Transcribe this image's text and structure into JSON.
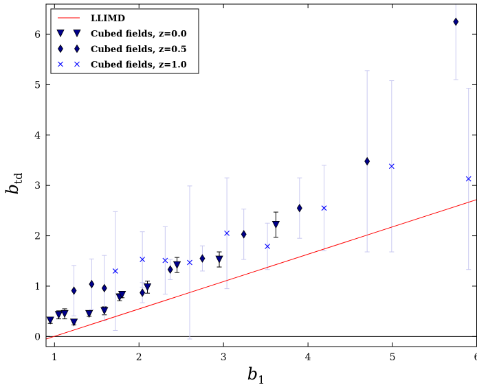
{
  "chart_data": {
    "type": "scatter",
    "xlabel": "b",
    "xlabel_sub": "1",
    "ylabel": "b",
    "ylabel_sub": "td",
    "xlim": [
      0.9,
      6.0
    ],
    "ylim": [
      -0.2,
      6.6
    ],
    "xticks": [
      1,
      2,
      3,
      4,
      5,
      6
    ],
    "yticks": [
      0,
      1,
      2,
      3,
      4,
      5,
      6
    ],
    "grid": false,
    "legend_position": "top-left",
    "zero_line": true,
    "line": {
      "name": "LLIMD",
      "color": "#ff0000",
      "x": [
        0.9,
        6.0
      ],
      "y": [
        -0.05,
        2.72
      ]
    },
    "series": [
      {
        "name": "Cubed fields, z=0.0",
        "marker": "triangle-down",
        "color": "#00008b",
        "points": [
          {
            "x": 0.95,
            "y": 0.32,
            "err": 0.06
          },
          {
            "x": 1.05,
            "y": 0.43,
            "err": 0.08
          },
          {
            "x": 1.12,
            "y": 0.45,
            "err": 0.1
          },
          {
            "x": 1.23,
            "y": 0.28,
            "err": 0.05
          },
          {
            "x": 1.41,
            "y": 0.45,
            "err": 0.05
          },
          {
            "x": 1.59,
            "y": 0.51,
            "err": 0.08
          },
          {
            "x": 1.77,
            "y": 0.78,
            "err": 0.07
          },
          {
            "x": 1.8,
            "y": 0.83,
            "err": 0.06
          },
          {
            "x": 2.1,
            "y": 0.98,
            "err": 0.12
          },
          {
            "x": 2.45,
            "y": 1.42,
            "err": 0.15
          },
          {
            "x": 2.95,
            "y": 1.53,
            "err": 0.15
          },
          {
            "x": 3.62,
            "y": 2.22,
            "err": 0.25
          }
        ]
      },
      {
        "name": "Cubed fields, z=0.5",
        "marker": "diamond",
        "color": "#00008b",
        "points": [
          {
            "x": 1.23,
            "y": 0.91,
            "err": 0.5
          },
          {
            "x": 1.44,
            "y": 1.04,
            "err": 0.5
          },
          {
            "x": 1.59,
            "y": 0.96,
            "err": 0.65
          },
          {
            "x": 2.04,
            "y": 0.87,
            "err": 0.2
          },
          {
            "x": 2.37,
            "y": 1.33,
            "err": 0.2
          },
          {
            "x": 2.75,
            "y": 1.55,
            "err": 0.25
          },
          {
            "x": 3.24,
            "y": 2.03,
            "err": 0.5
          },
          {
            "x": 3.9,
            "y": 2.55,
            "err": 0.6
          },
          {
            "x": 4.7,
            "y": 3.48,
            "err": 1.8
          },
          {
            "x": 5.75,
            "y": 6.25,
            "err": 1.15
          }
        ]
      },
      {
        "name": "Cubed fields, z=1.0",
        "marker": "x",
        "color": "#0000ff",
        "points": [
          {
            "x": 1.72,
            "y": 1.3,
            "err": 1.18
          },
          {
            "x": 2.04,
            "y": 1.53,
            "err": 0.55
          },
          {
            "x": 2.31,
            "y": 1.51,
            "err": 0.67
          },
          {
            "x": 2.6,
            "y": 1.47,
            "err": 1.52
          },
          {
            "x": 3.04,
            "y": 2.05,
            "err": 1.1
          },
          {
            "x": 3.52,
            "y": 1.79,
            "err": 0.46
          },
          {
            "x": 4.19,
            "y": 2.55,
            "err": 0.85
          },
          {
            "x": 4.99,
            "y": 3.38,
            "err": 1.7
          },
          {
            "x": 5.9,
            "y": 3.13,
            "err": 1.8
          }
        ]
      }
    ]
  }
}
